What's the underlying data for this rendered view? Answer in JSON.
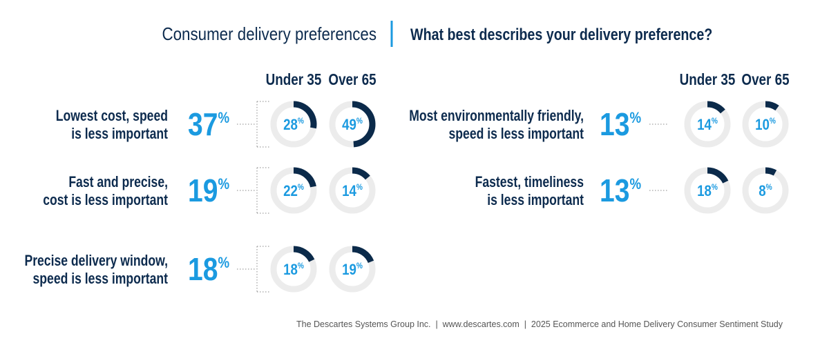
{
  "header": {
    "title": "Consumer delivery preferences",
    "question": "What best describes your delivery preference?"
  },
  "chart_data": {
    "type": "donut-grid",
    "unit": "%",
    "groups": [
      "Under 35",
      "Over 65"
    ],
    "colors": {
      "label": "#0d2b4e",
      "overall": "#1b9ae0",
      "arc": "#0b2a4a",
      "track": "#ececec"
    },
    "panels": [
      {
        "items": [
          {
            "label": [
              "Lowest cost, speed",
              "is less important"
            ],
            "overall": 37,
            "values": [
              28,
              49
            ]
          },
          {
            "label": [
              "Fast and precise,",
              "cost is less important"
            ],
            "overall": 19,
            "values": [
              22,
              14
            ]
          },
          {
            "label": [
              "Precise delivery window,",
              "speed is less important"
            ],
            "overall": 18,
            "values": [
              18,
              19
            ]
          }
        ]
      },
      {
        "items": [
          {
            "label": [
              "Most environmentally friendly,",
              "speed is less important"
            ],
            "overall": 13,
            "values": [
              14,
              10
            ]
          },
          {
            "label": [
              "Fastest, timeliness",
              "is less important"
            ],
            "overall": 13,
            "values": [
              18,
              8
            ]
          }
        ]
      }
    ]
  },
  "footer": "The Descartes Systems Group Inc.  |  www.descartes.com  |  2025 Ecommerce and Home Delivery Consumer Sentiment Study"
}
